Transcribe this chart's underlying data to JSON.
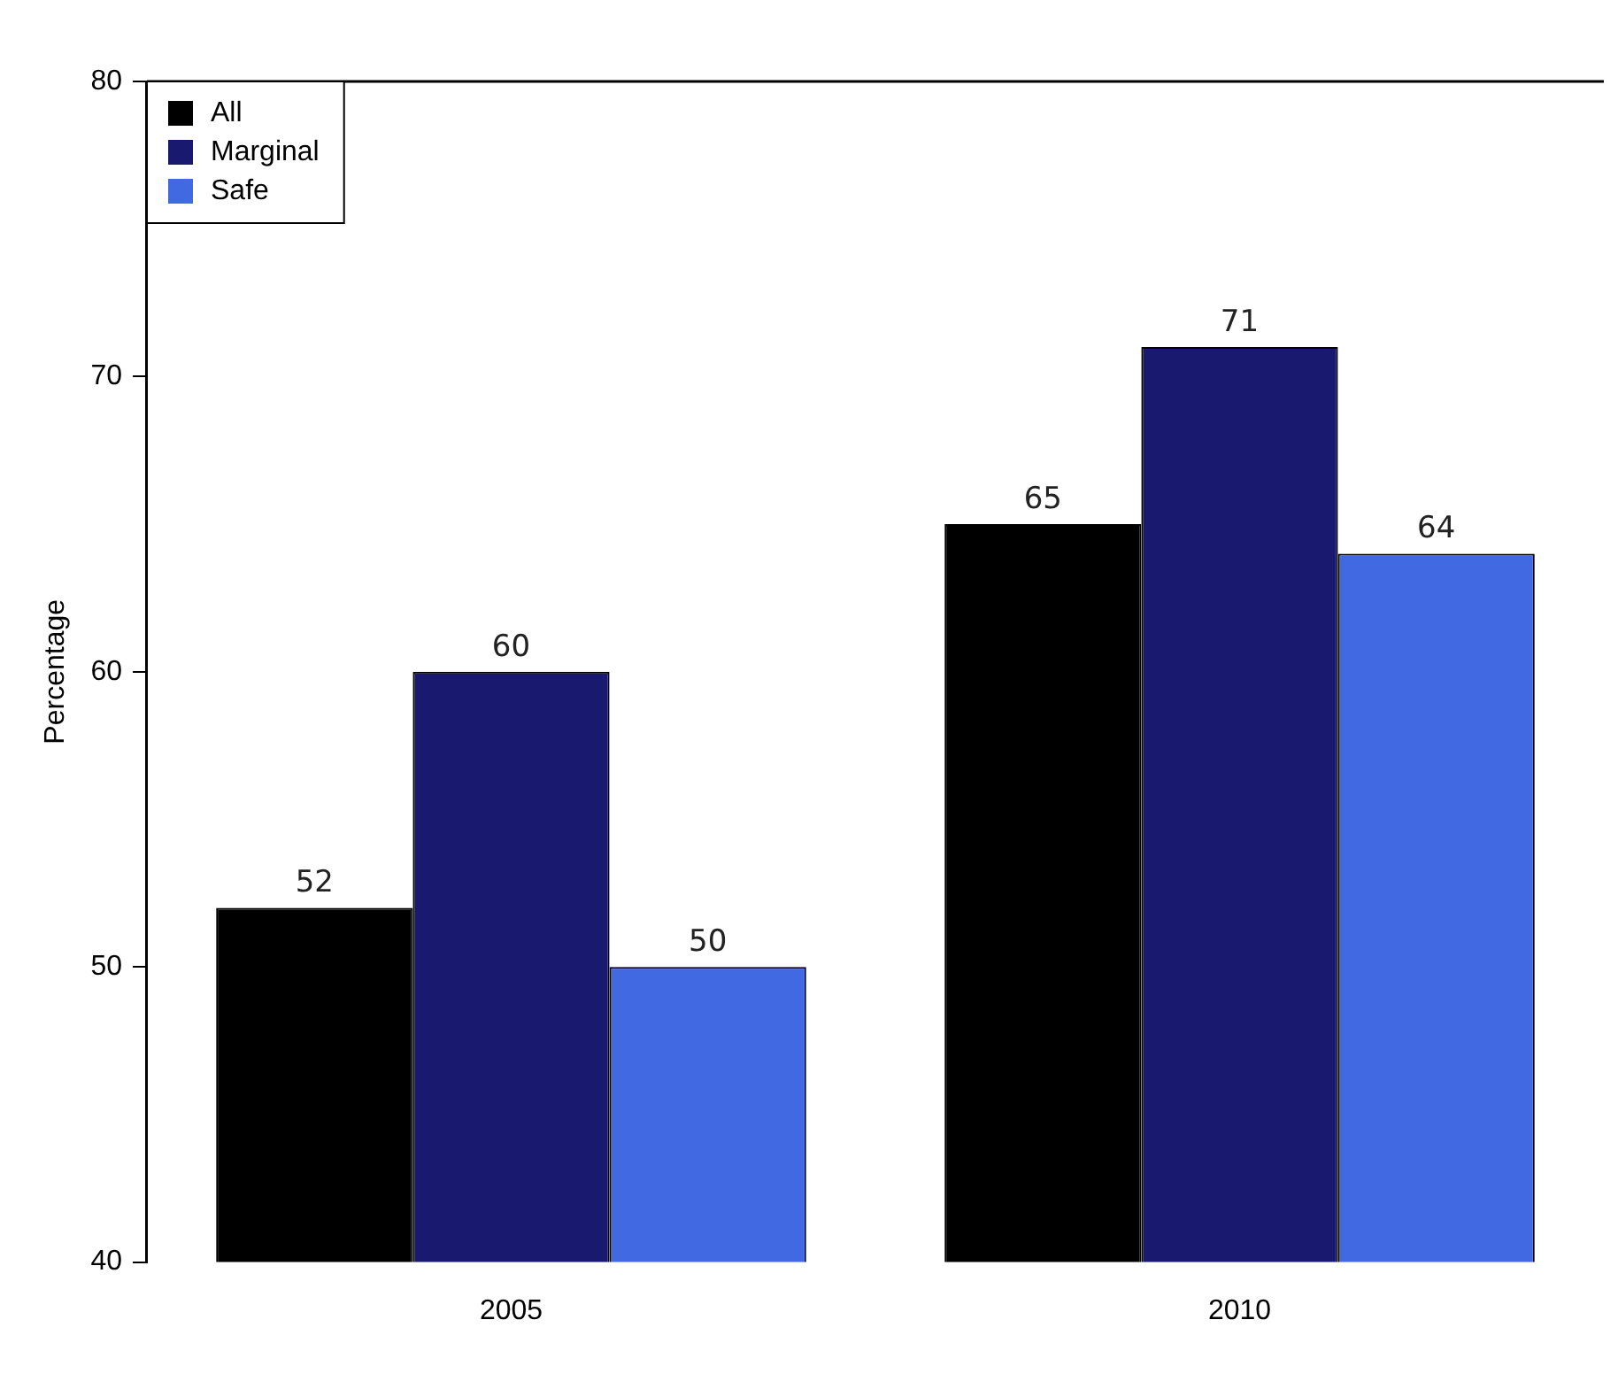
{
  "chart_data": {
    "type": "bar",
    "ylabel": "Percentage",
    "categories": [
      "2005",
      "2010"
    ],
    "series": [
      {
        "name": "All",
        "color": "#000000",
        "values": [
          52,
          65
        ]
      },
      {
        "name": "Marginal",
        "color": "#191970",
        "values": [
          60,
          71
        ]
      },
      {
        "name": "Safe",
        "color": "#4169e1",
        "values": [
          50,
          64
        ]
      }
    ],
    "ylim": [
      40,
      80
    ],
    "yticks": [
      40,
      50,
      60,
      70,
      80
    ],
    "grid": false,
    "legend": "top left",
    "data_labels": true
  }
}
